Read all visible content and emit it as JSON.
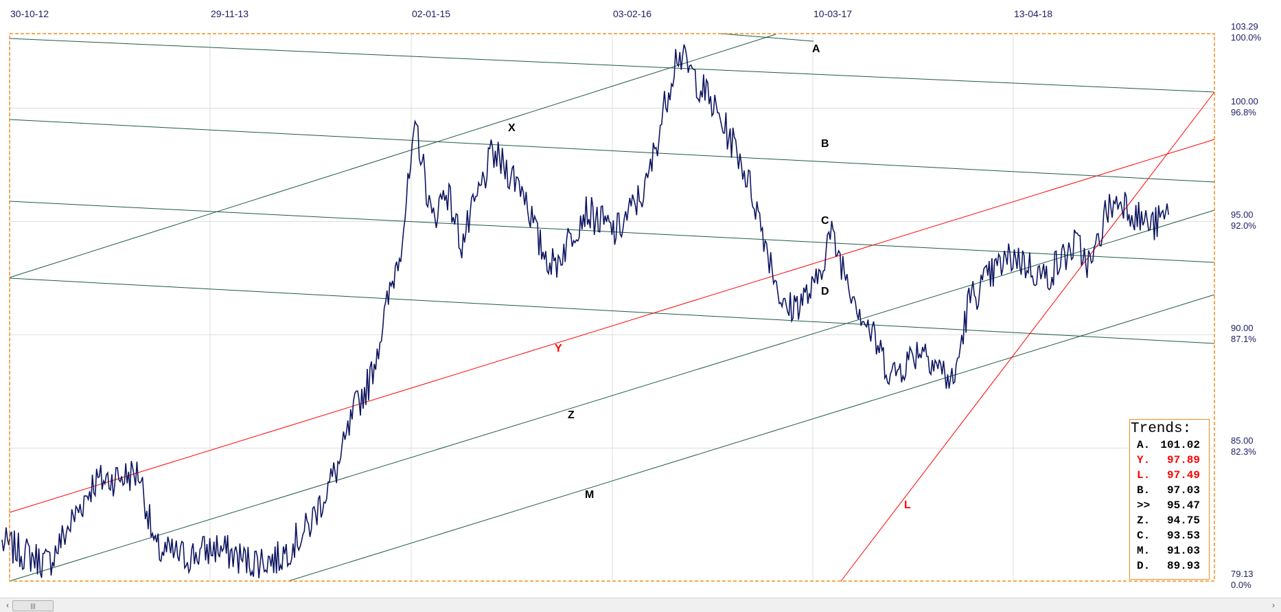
{
  "x_axis_labels": [
    "30-10-12",
    "29-11-13",
    "02-01-15",
    "03-02-16",
    "10-03-17",
    "13-04-18"
  ],
  "y_axis_labels": [
    {
      "price": "103.29",
      "pct": "100.0%"
    },
    {
      "price": "100.00",
      "pct": "96.8%"
    },
    {
      "price": "95.00",
      "pct": "92.0%"
    },
    {
      "price": "90.00",
      "pct": "87.1%"
    },
    {
      "price": "85.00",
      "pct": "82.3%"
    },
    {
      "price": "79.13",
      "pct": "0.0%"
    }
  ],
  "trend_letters": [
    {
      "letter": "A",
      "color": "#000000"
    },
    {
      "letter": "X",
      "color": "#000000"
    },
    {
      "letter": "B",
      "color": "#000000"
    },
    {
      "letter": "C",
      "color": "#000000"
    },
    {
      "letter": "D",
      "color": "#000000"
    },
    {
      "letter": "Y",
      "color": "#ff0000"
    },
    {
      "letter": "Z",
      "color": "#000000"
    },
    {
      "letter": "M",
      "color": "#000000"
    },
    {
      "letter": "L",
      "color": "#ff0000"
    }
  ],
  "trends_box": {
    "title": "Trends:",
    "rows": [
      {
        "key": "A.",
        "value": "101.02",
        "color": "#000000"
      },
      {
        "key": "Y.",
        "value": "97.89",
        "color": "#ff0000"
      },
      {
        "key": "L.",
        "value": "97.49",
        "color": "#ff0000"
      },
      {
        "key": "B.",
        "value": "97.03",
        "color": "#000000"
      },
      {
        "key": ">>",
        "value": "95.47",
        "color": "#000000"
      },
      {
        "key": "Z.",
        "value": "94.75",
        "color": "#000000"
      },
      {
        "key": "C.",
        "value": "93.53",
        "color": "#000000"
      },
      {
        "key": "M.",
        "value": "91.03",
        "color": "#000000"
      },
      {
        "key": "D.",
        "value": "89.93",
        "color": "#000000"
      }
    ]
  },
  "scrollbar": {
    "thumb_grip": "|||",
    "left_arrow": "‹",
    "right_arrow": "›"
  },
  "colors": {
    "price_line": "#0d1560",
    "trend_green": "#1e5a45",
    "trend_red": "#ff0000",
    "frame_orange": "#f28c1c",
    "grid": "#dddddd",
    "axis_text": "#1c1c66"
  },
  "chart_data": {
    "type": "line",
    "title": "",
    "xlabel": "",
    "ylabel": "",
    "ylim": [
      79.13,
      103.29
    ],
    "grid": true,
    "x_tick_labels": [
      "30-10-12",
      "29-11-13",
      "02-01-15",
      "03-02-16",
      "10-03-17",
      "13-04-18"
    ],
    "series": [
      {
        "values_note_free": true,
        "x": [
          "2012-10",
          "2013-01",
          "2013-04",
          "2013-07",
          "2013-08",
          "2013-10",
          "2013-12",
          "2014-02",
          "2014-04",
          "2014-06",
          "2014-08",
          "2014-09",
          "2014-10",
          "2014-11",
          "2014-12",
          "2015-01",
          "2015-02",
          "2015-03",
          "2015-04",
          "2015-06",
          "2015-08",
          "2015-09",
          "2015-10",
          "2015-12",
          "2016-02",
          "2016-04",
          "2016-06",
          "2016-08",
          "2016-10",
          "2016-11",
          "2016-12",
          "2017-01",
          "2017-03",
          "2017-04",
          "2017-06",
          "2017-08",
          "2017-10",
          "2017-12",
          "2018-01",
          "2018-03",
          "2018-04",
          "2018-06",
          "2018-08",
          "2018-09",
          "2018-10",
          "2018-11",
          "2018-12",
          "2019-01",
          "2019-02"
        ],
        "y": [
          80.8,
          79.9,
          83.5,
          83.9,
          80.5,
          80.2,
          80.6,
          80.0,
          80.1,
          81.5,
          84.3,
          86.7,
          88.0,
          91.0,
          94.0,
          99.2,
          95.0,
          96.5,
          94.0,
          98.0,
          96.5,
          94.0,
          93.0,
          95.5,
          94.5,
          96.5,
          102.5,
          100.5,
          98.0,
          96.0,
          93.5,
          91.0,
          92.0,
          94.5,
          91.0,
          88.2,
          89.5,
          87.8,
          91.5,
          93.0,
          93.5,
          92.5,
          94.0,
          93.0,
          95.5,
          96.0,
          95.2,
          94.8,
          95.3
        ]
      }
    ],
    "trend_values": {
      "A": 101.02,
      "Y": 97.89,
      "L": 97.49,
      "B": 97.03,
      ">>": 95.47,
      "Z": 94.75,
      "C": 93.53,
      "M": 91.03,
      "D": 89.93
    }
  }
}
